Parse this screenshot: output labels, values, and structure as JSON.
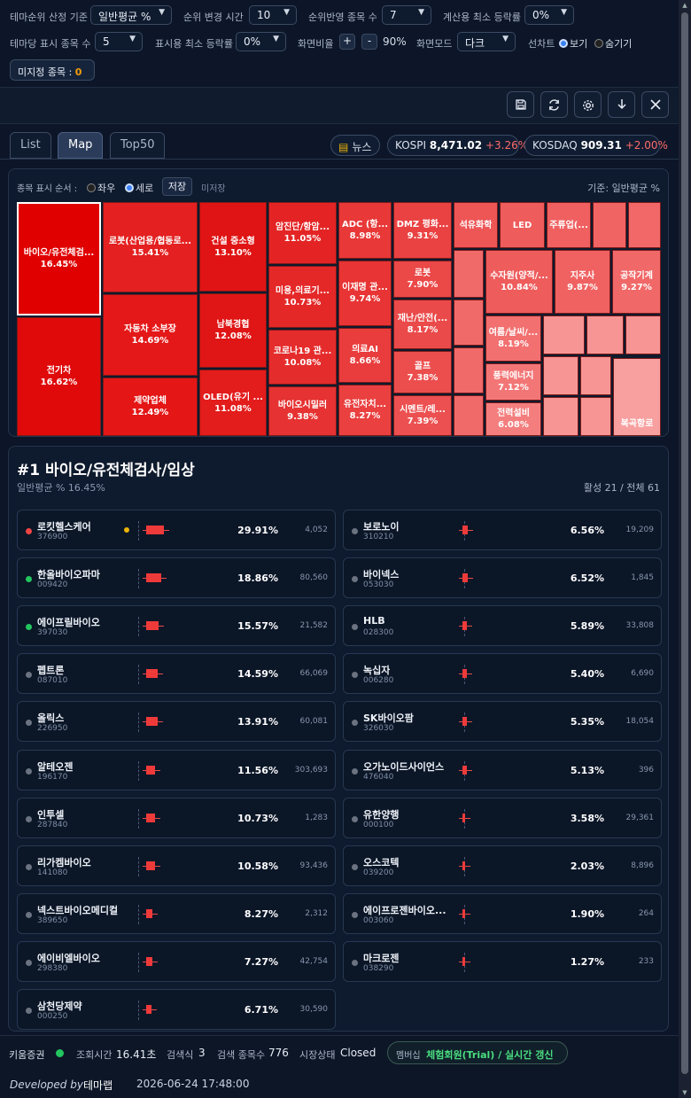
{
  "filters": {
    "sort_basis_label": "테마순위 산정 기준",
    "sort_basis_value": "일반평균 %",
    "rank_change_label": "순위 변경 시간",
    "rank_change_value": "10",
    "rank_count_label": "순위반영 종목 수",
    "rank_count_value": "7",
    "calc_min_label": "계산용 최소 등락률",
    "calc_min_value": "0%",
    "per_theme_label": "테마당 표시 종목 수",
    "per_theme_value": "5",
    "display_min_label": "표시용 최소 등락률",
    "display_min_value": "0%",
    "ratio_label": "화면비율",
    "ratio_plus": "+",
    "ratio_minus": "-",
    "ratio_value": "90%",
    "mode_label": "화면모드",
    "mode_value": "다크",
    "line_chart_label": "선차트",
    "show_label": "보기",
    "hide_label": "숨기기",
    "unassigned_label": "미지정 종목 : ",
    "unassigned_count": "0"
  },
  "toolbar": {
    "icons": [
      "save-icon",
      "refresh-icon",
      "gear-icon",
      "download-icon",
      "close-icon"
    ]
  },
  "tabs": [
    {
      "label": "List"
    },
    {
      "label": "Map"
    },
    {
      "label": "Top50"
    }
  ],
  "market": {
    "news_label": "뉴스",
    "kospi_label": "KOSPI",
    "kospi_value": "8,471.02",
    "kospi_change": "+3.26%",
    "kosdaq_label": "KOSDAQ",
    "kosdaq_value": "909.31",
    "kosdaq_change": "+2.00%"
  },
  "map": {
    "order_label": "종목 표시 순서 :",
    "lr_label": "좌우",
    "tb_label": "세로",
    "save_label": "저장",
    "unsaved_label": "미저장",
    "basis_label": "기준: 일반평균 %",
    "tiles": [
      {
        "name": "바이오/유전체검...",
        "pct": "16.45%",
        "color": "#e00000"
      },
      {
        "name": "전기차",
        "pct": "16.62%",
        "color": "#e00a0a"
      },
      {
        "name": "로봇(산업용/협동로...",
        "pct": "15.41%",
        "color": "#e42020"
      },
      {
        "name": "자동차 소부장",
        "pct": "14.69%",
        "color": "#e41818"
      },
      {
        "name": "제약업체",
        "pct": "12.49%",
        "color": "#e41616"
      },
      {
        "name": "건설 중소형",
        "pct": "13.10%",
        "color": "#e01414"
      },
      {
        "name": "남북경협",
        "pct": "12.08%",
        "color": "#e01616"
      },
      {
        "name": "OLED(유기 ...",
        "pct": "11.08%",
        "color": "#e31c1c"
      },
      {
        "name": "암진단/항암...",
        "pct": "11.05%",
        "color": "#e42424"
      },
      {
        "name": "미용,의료기...",
        "pct": "10.73%",
        "color": "#e42828"
      },
      {
        "name": "코로나19 관...",
        "pct": "10.08%",
        "color": "#e52c2c"
      },
      {
        "name": "바이오시밀러",
        "pct": "9.38%",
        "color": "#e63232"
      },
      {
        "name": "ADC (항...",
        "pct": "8.98%",
        "color": "#e83838"
      },
      {
        "name": "이재명 관...",
        "pct": "9.74%",
        "color": "#e83434"
      },
      {
        "name": "의료AI",
        "pct": "8.66%",
        "color": "#e93c3c"
      },
      {
        "name": "유전자치...",
        "pct": "8.27%",
        "color": "#ea4040"
      },
      {
        "name": "DMZ 평화...",
        "pct": "9.31%",
        "color": "#ea4242"
      },
      {
        "name": "로봇",
        "pct": "7.90%",
        "color": "#eb4848"
      },
      {
        "name": "재난/안전(...",
        "pct": "8.17%",
        "color": "#eb4a4a"
      },
      {
        "name": "골프",
        "pct": "7.38%",
        "color": "#ec4e4e"
      },
      {
        "name": "시멘트/레...",
        "pct": "7.39%",
        "color": "#ec5050"
      },
      {
        "name": "석유화학",
        "pct": "",
        "color": "#ee5656"
      },
      {
        "name": "LED",
        "pct": "",
        "color": "#ef5c5c"
      },
      {
        "name": "주류업(...",
        "pct": "",
        "color": "#f06060"
      },
      {
        "name": "",
        "pct": "",
        "color": "#f16464"
      },
      {
        "name": "",
        "pct": "",
        "color": "#f26868"
      },
      {
        "name": "수자원(양적/...",
        "pct": "10.84%",
        "color": "#ee5c5c"
      },
      {
        "name": "지주사",
        "pct": "9.87%",
        "color": "#f06262"
      },
      {
        "name": "공작기계",
        "pct": "9.27%",
        "color": "#f16868"
      },
      {
        "name": "여름/날씨/...",
        "pct": "8.19%",
        "color": "#f27070"
      },
      {
        "name": "풍력에너지",
        "pct": "7.12%",
        "color": "#f37676"
      },
      {
        "name": "전력설비",
        "pct": "6.08%",
        "color": "#f47e7e"
      },
      {
        "name": "복곡항로",
        "pct": "",
        "color": "#f8a0a0"
      }
    ]
  },
  "detail": {
    "title": "#1 바이오/유전체검사/임상",
    "subtitle": "일반평균 % 16.45%",
    "active_summary": "활성 21 / 전체 61",
    "stocks": [
      {
        "name": "로킷헬스케어",
        "code": "376900",
        "pct": "29.91%",
        "vol": "4,052"
      },
      {
        "name": "보로노이",
        "code": "310210",
        "pct": "6.56%",
        "vol": "19,209"
      },
      {
        "name": "한올바이오파마",
        "code": "009420",
        "pct": "18.86%",
        "vol": "80,560"
      },
      {
        "name": "바이넥스",
        "code": "053030",
        "pct": "6.52%",
        "vol": "1,845"
      },
      {
        "name": "에이프릴바이오",
        "code": "397030",
        "pct": "15.57%",
        "vol": "21,582"
      },
      {
        "name": "HLB",
        "code": "028300",
        "pct": "5.89%",
        "vol": "33,808"
      },
      {
        "name": "펩트론",
        "code": "087010",
        "pct": "14.59%",
        "vol": "66,069"
      },
      {
        "name": "녹십자",
        "code": "006280",
        "pct": "5.40%",
        "vol": "6,690"
      },
      {
        "name": "올릭스",
        "code": "226950",
        "pct": "13.91%",
        "vol": "60,081"
      },
      {
        "name": "SK바이오팜",
        "code": "326030",
        "pct": "5.35%",
        "vol": "18,054"
      },
      {
        "name": "알테오젠",
        "code": "196170",
        "pct": "11.56%",
        "vol": "303,693"
      },
      {
        "name": "오가노이드사이언스",
        "code": "476040",
        "pct": "5.13%",
        "vol": "396"
      },
      {
        "name": "인투셀",
        "code": "287840",
        "pct": "10.73%",
        "vol": "1,283"
      },
      {
        "name": "유한양행",
        "code": "000100",
        "pct": "3.58%",
        "vol": "29,361"
      },
      {
        "name": "리가켐바이오",
        "code": "141080",
        "pct": "10.58%",
        "vol": "93,436"
      },
      {
        "name": "오스코텍",
        "code": "039200",
        "pct": "2.03%",
        "vol": "8,896"
      },
      {
        "name": "넥스트바이오메디컬",
        "code": "389650",
        "pct": "8.27%",
        "vol": "2,312"
      },
      {
        "name": "에이프로젠바이오...",
        "code": "003060",
        "pct": "1.90%",
        "vol": "264"
      },
      {
        "name": "에이비엘바이오",
        "code": "298380",
        "pct": "7.27%",
        "vol": "42,754"
      },
      {
        "name": "마크로젠",
        "code": "038290",
        "pct": "1.27%",
        "vol": "233"
      },
      {
        "name": "삼천당제약",
        "code": "000250",
        "pct": "6.71%",
        "vol": "30,590"
      }
    ]
  },
  "status": {
    "broker": "키움증권",
    "query_time_label": "조회시간",
    "query_time_value": "16.41초",
    "search_count_label": "검색식",
    "search_count_value": "3",
    "search_stocks_label": "검색 종목수",
    "search_stocks_value": "776",
    "market_state_label": "시장상태",
    "market_state_value": "Closed",
    "membership_label": "멤버십",
    "membership_value": "체험회원(Trial) / 실시간 갱신",
    "developed_label": "Developed by",
    "developer": "테마랩",
    "datetime": "2026-06-24 17:48:00"
  }
}
